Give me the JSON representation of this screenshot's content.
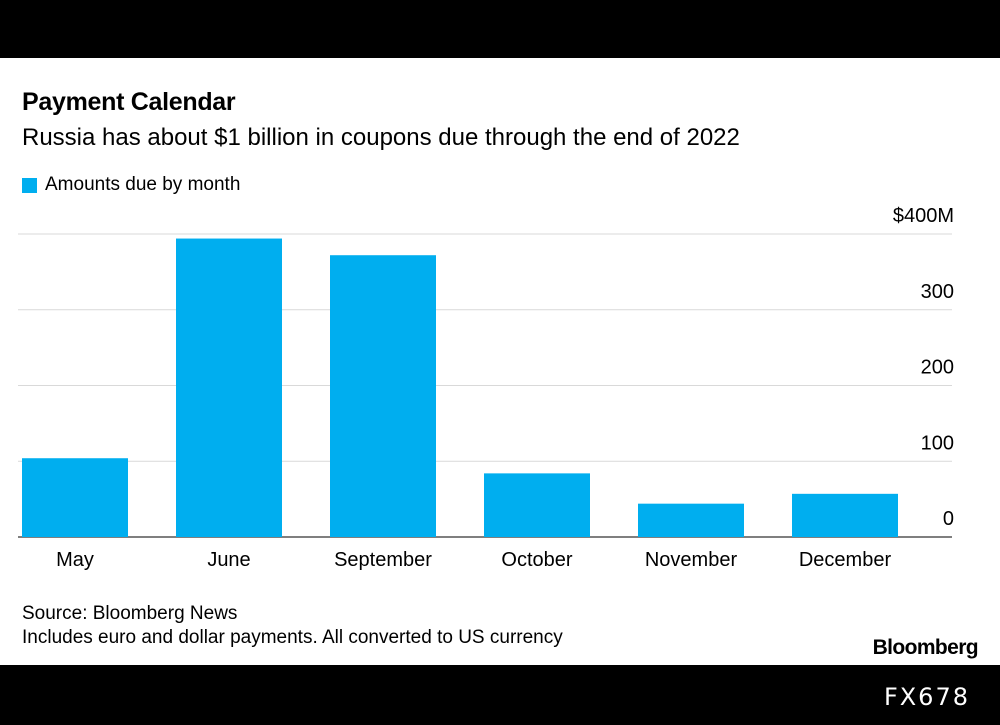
{
  "chart_data": {
    "type": "bar",
    "title": "Payment Calendar",
    "subtitle": "Russia has about $1 billion in coupons due through the end of 2022",
    "categories": [
      "May",
      "June",
      "September",
      "October",
      "November",
      "December"
    ],
    "series": [
      {
        "name": "Amounts due by month",
        "values": [
          104,
          394,
          372,
          84,
          44,
          57
        ]
      }
    ],
    "ylim": [
      0,
      400
    ],
    "yticks": [
      {
        "value": 0,
        "label": "0"
      },
      {
        "value": 100,
        "label": "100"
      },
      {
        "value": 200,
        "label": "200"
      },
      {
        "value": 300,
        "label": "300"
      },
      {
        "value": 400,
        "label": "$400M"
      }
    ],
    "bar_color": "#00aeef",
    "grid": true,
    "y_axis_position": "right",
    "legend_position": "top-left"
  },
  "footer": {
    "source": "Source: Bloomberg News",
    "note": "Includes euro and dollar payments. All converted to US currency",
    "brand": "Bloomberg"
  },
  "watermark": "FX678"
}
